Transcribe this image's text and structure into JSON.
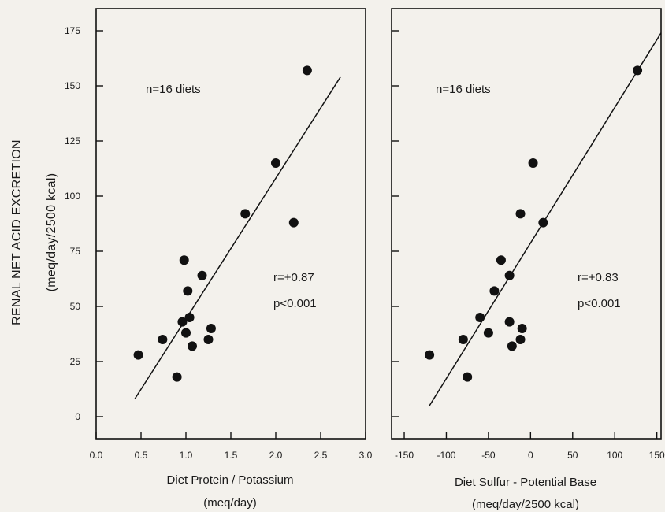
{
  "chart_data": [
    {
      "type": "scatter",
      "title": "",
      "xlabel": "Diet Protein / Potassium",
      "xlabel_unit": "(meq/day)",
      "ylabel": "RENAL NET ACID EXCRETION",
      "ylabel_unit": "(meq/day/2500 kcal)",
      "xlim": [
        0,
        3
      ],
      "ylim": [
        -10,
        185
      ],
      "x_ticks": [
        0,
        0.5,
        1,
        1.5,
        2,
        2.5,
        3
      ],
      "x_tick_labels": [
        "0.0",
        "0.5",
        "1.0",
        "1.5",
        "2.0",
        "2.5",
        "3.0"
      ],
      "y_ticks": [
        0,
        25,
        50,
        75,
        100,
        125,
        150,
        175
      ],
      "y_tick_labels": [
        "0",
        "25",
        "50",
        "75",
        "100",
        "125",
        "150",
        "175"
      ],
      "annotations": {
        "n": "n=16 diets",
        "r": "r=+0.87",
        "p": "p<0.001"
      },
      "grid": false,
      "points": [
        {
          "x": 0.47,
          "y": 28
        },
        {
          "x": 0.74,
          "y": 35
        },
        {
          "x": 0.9,
          "y": 18
        },
        {
          "x": 0.96,
          "y": 43
        },
        {
          "x": 0.98,
          "y": 71
        },
        {
          "x": 1.0,
          "y": 38
        },
        {
          "x": 1.02,
          "y": 57
        },
        {
          "x": 1.04,
          "y": 45
        },
        {
          "x": 1.07,
          "y": 32
        },
        {
          "x": 1.18,
          "y": 64
        },
        {
          "x": 1.25,
          "y": 35
        },
        {
          "x": 1.28,
          "y": 40
        },
        {
          "x": 1.66,
          "y": 92
        },
        {
          "x": 2.0,
          "y": 115
        },
        {
          "x": 2.2,
          "y": 88
        },
        {
          "x": 2.35,
          "y": 157
        }
      ],
      "fit_line": [
        {
          "x": 0.43,
          "y": 8
        },
        {
          "x": 2.72,
          "y": 154
        }
      ]
    },
    {
      "type": "scatter",
      "title": "",
      "xlabel": "Diet Sulfur - Potential Base",
      "xlabel_unit": "(meq/day/2500 kcal)",
      "ylabel": "",
      "xlim": [
        -165,
        155
      ],
      "ylim": [
        -10,
        185
      ],
      "x_ticks": [
        -150,
        -100,
        -50,
        0,
        50,
        100,
        150
      ],
      "x_tick_labels": [
        "-150",
        "-100",
        "-50",
        "0",
        "50",
        "100",
        "150"
      ],
      "y_ticks": [
        0,
        25,
        50,
        75,
        100,
        125,
        150,
        175
      ],
      "y_tick_labels": [],
      "annotations": {
        "n": "n=16 diets",
        "r": "r=+0.83",
        "p": "p<0.001"
      },
      "grid": false,
      "points": [
        {
          "x": -120,
          "y": 28
        },
        {
          "x": -80,
          "y": 35
        },
        {
          "x": -75,
          "y": 18
        },
        {
          "x": -60,
          "y": 45
        },
        {
          "x": -50,
          "y": 38
        },
        {
          "x": -43,
          "y": 57
        },
        {
          "x": -35,
          "y": 71
        },
        {
          "x": -25,
          "y": 64
        },
        {
          "x": -25,
          "y": 43
        },
        {
          "x": -22,
          "y": 32
        },
        {
          "x": -12,
          "y": 35
        },
        {
          "x": -10,
          "y": 40
        },
        {
          "x": -12,
          "y": 92
        },
        {
          "x": 3,
          "y": 115
        },
        {
          "x": 15,
          "y": 88
        },
        {
          "x": 127,
          "y": 157
        }
      ],
      "fit_line": [
        {
          "x": -120,
          "y": 5
        },
        {
          "x": 155,
          "y": 174
        }
      ]
    }
  ]
}
